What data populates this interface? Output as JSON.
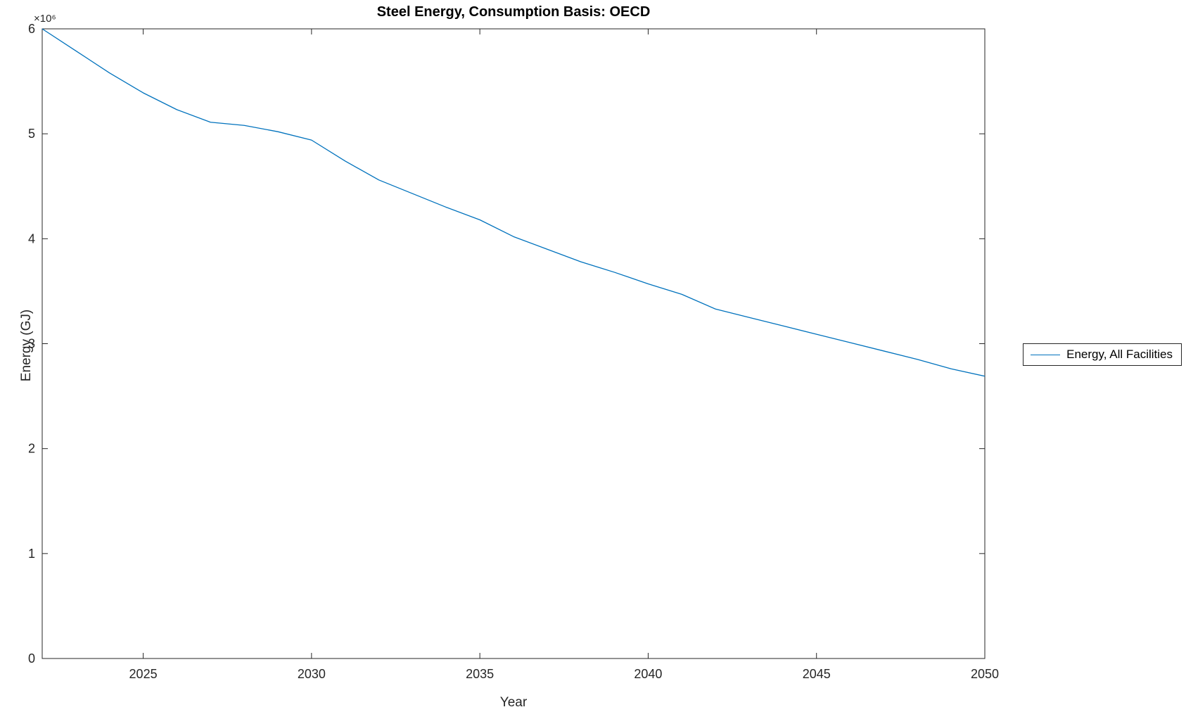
{
  "chart_data": {
    "type": "line",
    "title": "Steel Energy, Consumption Basis: OECD",
    "xlabel": "Year",
    "ylabel": "Energy (GJ)",
    "y_axis_multiplier": "×10⁶",
    "xlim": [
      2022,
      2050
    ],
    "ylim": [
      0,
      6000000
    ],
    "x_ticks": [
      2025,
      2030,
      2035,
      2040,
      2045,
      2050
    ],
    "y_ticks": [
      0,
      1000000,
      2000000,
      3000000,
      4000000,
      5000000,
      6000000
    ],
    "y_tick_labels": [
      "0",
      "1",
      "2",
      "3",
      "4",
      "5",
      "6"
    ],
    "grid": false,
    "legend": {
      "position": "right-outside",
      "entries": [
        "Energy, All Facilities"
      ]
    },
    "series": [
      {
        "name": "Energy, All Facilities",
        "color": "#0072BD",
        "x": [
          2022,
          2023,
          2024,
          2025,
          2026,
          2027,
          2028,
          2029,
          2030,
          2031,
          2032,
          2033,
          2034,
          2035,
          2036,
          2037,
          2038,
          2039,
          2040,
          2041,
          2042,
          2043,
          2044,
          2045,
          2046,
          2047,
          2048,
          2049,
          2050
        ],
        "values": [
          6000000,
          5790000,
          5580000,
          5390000,
          5230000,
          5110000,
          5080000,
          5020000,
          4940000,
          4740000,
          4560000,
          4430000,
          4300000,
          4180000,
          4020000,
          3900000,
          3780000,
          3680000,
          3570000,
          3470000,
          3330000,
          3250000,
          3170000,
          3090000,
          3010000,
          2930000,
          2850000,
          2760000,
          2690000
        ]
      }
    ]
  }
}
